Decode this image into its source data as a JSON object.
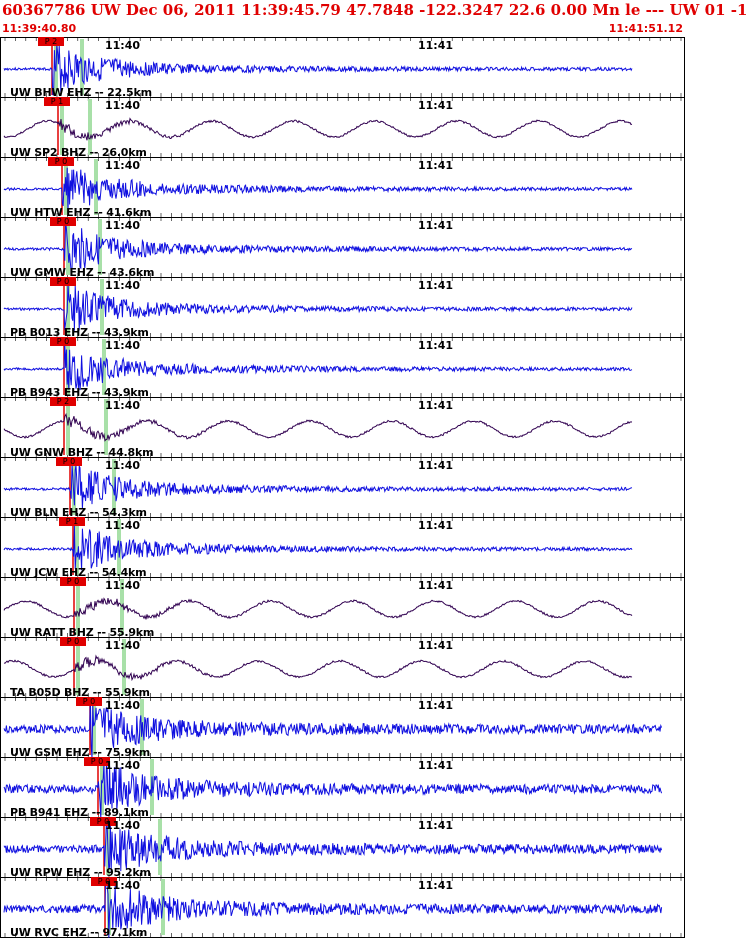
{
  "header": {
    "title": "60367786 UW Dec 06, 2011 11:39:45.79   47.7848 -122.3247 22.6 0.00 Mn le --- UW 01   -1",
    "start_time": "11:39:40.80",
    "end_time": "11:41:51.12"
  },
  "time_labels": [
    "11:40",
    "11:41"
  ],
  "colors": {
    "header": "#e00000",
    "trace_vertical": "#1010e0",
    "trace_broadband": "#300050",
    "pick": "#e00000",
    "window": "#a8e0a8"
  },
  "traces": [
    {
      "label": "UW BHW EHZ -- 22.5km",
      "pick": "P 2",
      "kind": "short"
    },
    {
      "label": "UW SP2 BHZ -- 26.0km",
      "pick": "P 1",
      "kind": "broad"
    },
    {
      "label": "UW HTW EHZ -- 41.6km",
      "pick": "P 0",
      "kind": "short"
    },
    {
      "label": "UW GMW EHZ -- 43.6km",
      "pick": "P 0",
      "kind": "short"
    },
    {
      "label": "PB B013 EHZ -- 43.9km",
      "pick": "P 0",
      "kind": "short"
    },
    {
      "label": "PB B943 EHZ -- 43.9km",
      "pick": "P 0",
      "kind": "short"
    },
    {
      "label": "UW GNW BHZ -- 44.8km",
      "pick": "P 2",
      "kind": "broad"
    },
    {
      "label": "UW BLN EHZ -- 54.3km",
      "pick": "P 0",
      "kind": "short"
    },
    {
      "label": "UW JCW EHZ -- 54.4km",
      "pick": "P 1",
      "kind": "short"
    },
    {
      "label": "UW RATT BHZ -- 55.9km",
      "pick": "P 0",
      "kind": "broad"
    },
    {
      "label": "TA B05D BHZ -- 55.9km",
      "pick": "P 0",
      "kind": "broad"
    },
    {
      "label": "UW GSM EHZ -- 75.9km",
      "pick": "P 0",
      "kind": "short"
    },
    {
      "label": "PB B941 EHZ -- 89.1km",
      "pick": "P 0",
      "kind": "short"
    },
    {
      "label": "UW RPW EHZ -- 95.2km",
      "pick": "P 0",
      "kind": "short"
    },
    {
      "label": "UW RVC EHZ -- 97.1km",
      "pick": "P 0",
      "kind": "short"
    }
  ]
}
